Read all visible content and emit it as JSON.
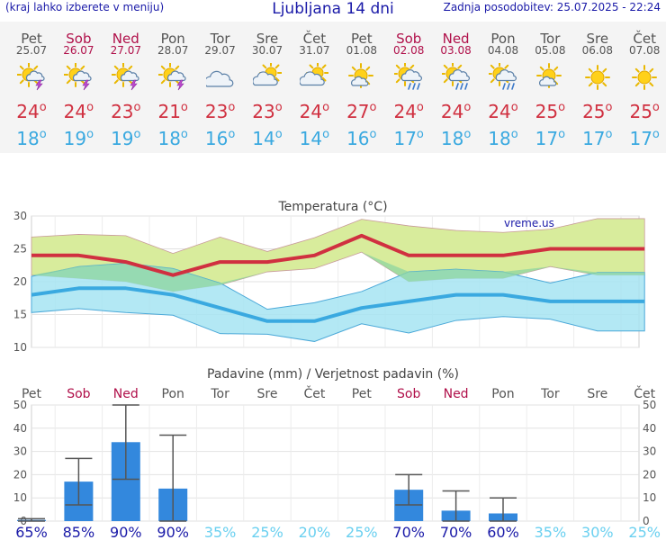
{
  "header": {
    "menu_hint": "(kraj lahko izberete v meniju)",
    "title": "Ljubljana 14 dni",
    "last_update": "Zadnja posodobitev: 25.07.2025 - 22:24"
  },
  "colors": {
    "max_temp": "#d03040",
    "min_temp": "#3aa9e0",
    "weekend": "#b0104a",
    "max_band": "#d8ec9c",
    "min_band": "#a6e4f2",
    "overlap_band": "#8fd6a0",
    "precip_bar": "#3388dd",
    "prob_high": "#1a1aa8",
    "prob_low": "#6ad0f0"
  },
  "days": [
    {
      "name": "Pet",
      "date": "25.07",
      "weekend": false,
      "icon": "sun-cloud-thunder-icon",
      "max": "24",
      "min": "18"
    },
    {
      "name": "Sob",
      "date": "26.07",
      "weekend": true,
      "icon": "sun-cloud-thunder-icon",
      "max": "24",
      "min": "19"
    },
    {
      "name": "Ned",
      "date": "27.07",
      "weekend": true,
      "icon": "sun-cloud-thunder-icon",
      "max": "23",
      "min": "19"
    },
    {
      "name": "Pon",
      "date": "28.07",
      "weekend": false,
      "icon": "sun-cloud-thunder-icon",
      "max": "21",
      "min": "18"
    },
    {
      "name": "Tor",
      "date": "29.07",
      "weekend": false,
      "icon": "cloud-icon",
      "max": "23",
      "min": "16"
    },
    {
      "name": "Sre",
      "date": "30.07",
      "weekend": false,
      "icon": "sun-cloud-icon",
      "max": "23",
      "min": "14"
    },
    {
      "name": "Čet",
      "date": "31.07",
      "weekend": false,
      "icon": "sun-cloud-icon",
      "max": "24",
      "min": "14"
    },
    {
      "name": "Pet",
      "date": "01.08",
      "weekend": false,
      "icon": "sun-small-cloud-icon",
      "max": "27",
      "min": "16"
    },
    {
      "name": "Sob",
      "date": "02.08",
      "weekend": true,
      "icon": "sun-cloud-rain-icon",
      "max": "24",
      "min": "17"
    },
    {
      "name": "Ned",
      "date": "03.08",
      "weekend": true,
      "icon": "sun-cloud-rain-icon",
      "max": "24",
      "min": "18"
    },
    {
      "name": "Pon",
      "date": "04.08",
      "weekend": false,
      "icon": "sun-cloud-rain-icon",
      "max": "24",
      "min": "18"
    },
    {
      "name": "Tor",
      "date": "05.08",
      "weekend": false,
      "icon": "sun-small-cloud-icon",
      "max": "25",
      "min": "17"
    },
    {
      "name": "Sre",
      "date": "06.08",
      "weekend": false,
      "icon": "sun-icon",
      "max": "25",
      "min": "17"
    },
    {
      "name": "Čet",
      "date": "07.08",
      "weekend": false,
      "icon": "sun-icon",
      "max": "25",
      "min": "17"
    }
  ],
  "chart_data": [
    {
      "type": "area",
      "title": "Temperatura (°C)",
      "watermark": "vreme.us",
      "ylim": [
        10,
        30
      ],
      "yticks": [
        10,
        15,
        20,
        25,
        30
      ],
      "grid": true,
      "x": [
        "25.07",
        "26.07",
        "27.07",
        "28.07",
        "29.07",
        "30.07",
        "31.07",
        "01.08",
        "02.08",
        "03.08",
        "04.08",
        "05.08",
        "06.08",
        "07.08"
      ],
      "series": [
        {
          "role": "max",
          "values": [
            24,
            24,
            23,
            21,
            23,
            23,
            24,
            27,
            24,
            24,
            24,
            25,
            25,
            25
          ]
        },
        {
          "role": "max-upper",
          "values": [
            26.8,
            27.2,
            27.0,
            24.3,
            26.8,
            24.6,
            26.7,
            29.5,
            28.5,
            27.8,
            27.5,
            28.0,
            29.6,
            29.6
          ]
        },
        {
          "role": "max-lower",
          "values": [
            21.0,
            20.5,
            20.0,
            18.5,
            19.5,
            21.5,
            22.0,
            24.5,
            20.0,
            20.5,
            20.5,
            22.3,
            21.0,
            21.0
          ]
        },
        {
          "role": "min",
          "values": [
            18,
            19,
            19,
            18,
            16,
            14,
            14,
            16,
            17,
            18,
            18,
            17,
            17,
            17
          ]
        },
        {
          "role": "min-upper",
          "values": [
            20.8,
            22.3,
            22.8,
            22.0,
            19.8,
            15.8,
            16.8,
            18.5,
            21.5,
            21.9,
            21.5,
            19.8,
            21.4,
            21.4
          ]
        },
        {
          "role": "min-lower",
          "values": [
            15.3,
            15.9,
            15.3,
            14.9,
            12.1,
            12.0,
            10.9,
            13.6,
            12.2,
            14.1,
            14.7,
            14.3,
            12.5,
            12.5
          ]
        }
      ]
    },
    {
      "type": "bar",
      "title": "Padavine (mm) / Verjetnost padavin (%)",
      "ylim": [
        0,
        50
      ],
      "yticks": [
        0,
        10,
        20,
        30,
        40,
        50
      ],
      "categories": [
        "Pet",
        "Sob",
        "Ned",
        "Pon",
        "Tor",
        "Sre",
        "Čet",
        "Pet",
        "Sob",
        "Ned",
        "Pon",
        "Tor",
        "Sre",
        "Čet"
      ],
      "weekend": [
        false,
        true,
        true,
        false,
        false,
        false,
        false,
        false,
        true,
        true,
        false,
        false,
        false,
        false
      ],
      "values": [
        0.5,
        17,
        34,
        14,
        0,
        0,
        0,
        0,
        13.5,
        4.5,
        3.3,
        0,
        0,
        0
      ],
      "range_low": [
        0,
        7,
        18,
        0,
        0,
        0,
        0,
        0,
        7,
        0,
        0,
        0,
        0,
        0
      ],
      "range_high": [
        1,
        27,
        52,
        37,
        0,
        0,
        0,
        0,
        20,
        13,
        10,
        0,
        0,
        0
      ],
      "probability": [
        "65%",
        "85%",
        "90%",
        "90%",
        "35%",
        "25%",
        "20%",
        "25%",
        "70%",
        "70%",
        "60%",
        "35%",
        "30%",
        "25%"
      ],
      "probability_values": [
        65,
        85,
        90,
        90,
        35,
        25,
        20,
        25,
        70,
        70,
        60,
        35,
        30,
        25
      ]
    }
  ]
}
